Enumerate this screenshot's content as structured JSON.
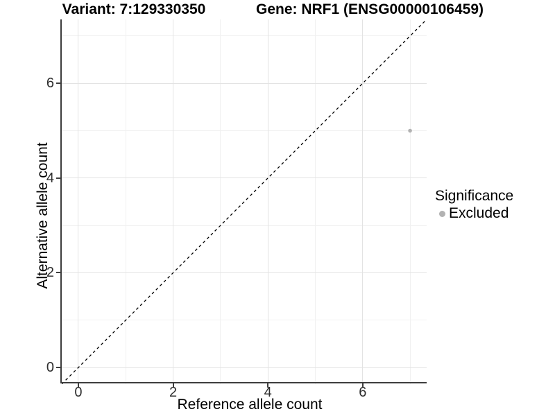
{
  "chart_data": {
    "type": "scatter",
    "titles": [
      "Variant: 7:129330350",
      "Gene: NRF1 (ENSG00000106459)"
    ],
    "xlabel": "Reference allele count",
    "ylabel": "Alternative allele count",
    "xlim": [
      -0.35,
      7.35
    ],
    "ylim": [
      -0.35,
      7.35
    ],
    "x_ticks": [
      0,
      2,
      4,
      6
    ],
    "y_ticks": [
      0,
      2,
      4,
      6
    ],
    "x_minor_gridlines": [
      1,
      3,
      5,
      7
    ],
    "y_minor_gridlines": [
      1,
      3,
      5,
      7
    ],
    "grid": "major and minor, light grey on white background",
    "legend": {
      "title": "Significance",
      "position": "right",
      "items": [
        {
          "label": "Excluded",
          "color": "#b2b2b2"
        }
      ]
    },
    "series": [
      {
        "name": "Excluded",
        "color": "#b2b2b2",
        "points": [
          {
            "x": 7,
            "y": 5
          }
        ]
      }
    ],
    "reference_line": {
      "equation": "y = x",
      "style": "dashed",
      "color": "#000000"
    }
  },
  "colors": {
    "background": "#ffffff",
    "axis_line": "#3d3d3d",
    "gridline_major": "#e3e3e3",
    "gridline_minor": "#f1f1f1",
    "tick_label": "#2e2e2e",
    "point": "#b2b2b2",
    "reference_line": "#000000"
  }
}
